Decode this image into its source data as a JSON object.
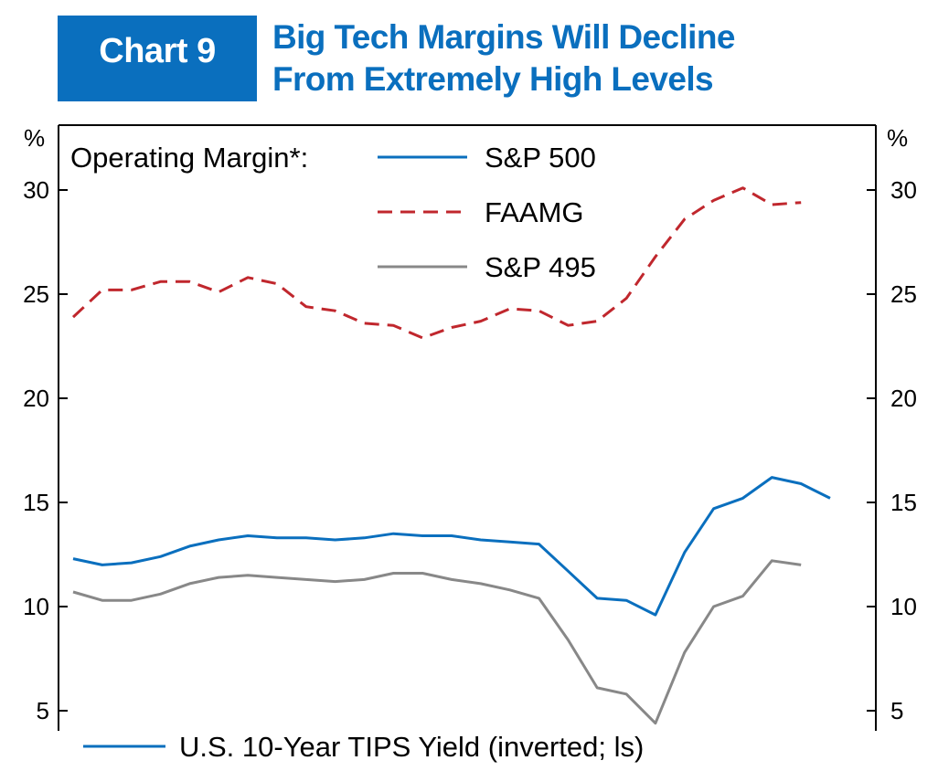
{
  "header": {
    "badge": "Chart 9",
    "title_line1": "Big Tech Margins Will Decline",
    "title_line2": "From Extremely High Levels"
  },
  "colors": {
    "brand": "#0a6fbe",
    "sp500": "#0a6fbe",
    "faamg": "#c0272d",
    "sp495": "#888888"
  },
  "chart_data": {
    "type": "line",
    "title": "Big Tech Margins Will Decline From Extremely High Levels",
    "left_axis_unit": "%",
    "right_axis_unit": "%",
    "ylim": [
      4,
      33
    ],
    "yticks": [
      "5",
      "10",
      "15",
      "20",
      "25",
      "30"
    ],
    "legend_prefix": "Operating Margin*:",
    "bottom_legend": "U.S. 10-Year TIPS Yield (inverted; ls)",
    "x": [
      0,
      1,
      2,
      3,
      4,
      5,
      6,
      7,
      8,
      9,
      10,
      11,
      12,
      13,
      14,
      15,
      16,
      17,
      18,
      19,
      20,
      21,
      22,
      23,
      24,
      25,
      26
    ],
    "series": [
      {
        "name": "S&P 500",
        "style": "solid",
        "color": "#0a6fbe",
        "values": [
          12.3,
          12.0,
          12.1,
          12.4,
          12.9,
          13.2,
          13.4,
          13.3,
          13.3,
          13.2,
          13.3,
          13.5,
          13.4,
          13.4,
          13.2,
          13.1,
          13.0,
          11.7,
          10.4,
          10.3,
          9.6,
          12.6,
          14.7,
          15.2,
          16.2,
          15.9,
          15.2
        ]
      },
      {
        "name": "FAAMG",
        "style": "dashed",
        "color": "#c0272d",
        "values": [
          23.9,
          25.2,
          25.2,
          25.6,
          25.6,
          25.1,
          25.8,
          25.5,
          24.4,
          24.2,
          23.6,
          23.5,
          22.9,
          23.4,
          23.7,
          24.3,
          24.2,
          23.5,
          23.7,
          24.8,
          26.8,
          28.6,
          29.5,
          30.1,
          29.3,
          29.4,
          null
        ]
      },
      {
        "name": "S&P 495",
        "style": "solid",
        "color": "#888888",
        "values": [
          10.7,
          10.3,
          10.3,
          10.6,
          11.1,
          11.4,
          11.5,
          11.4,
          11.3,
          11.2,
          11.3,
          11.6,
          11.6,
          11.3,
          11.1,
          10.8,
          10.4,
          8.4,
          6.1,
          5.8,
          4.4,
          7.8,
          10.0,
          10.5,
          12.2,
          12.0,
          null
        ]
      }
    ]
  }
}
